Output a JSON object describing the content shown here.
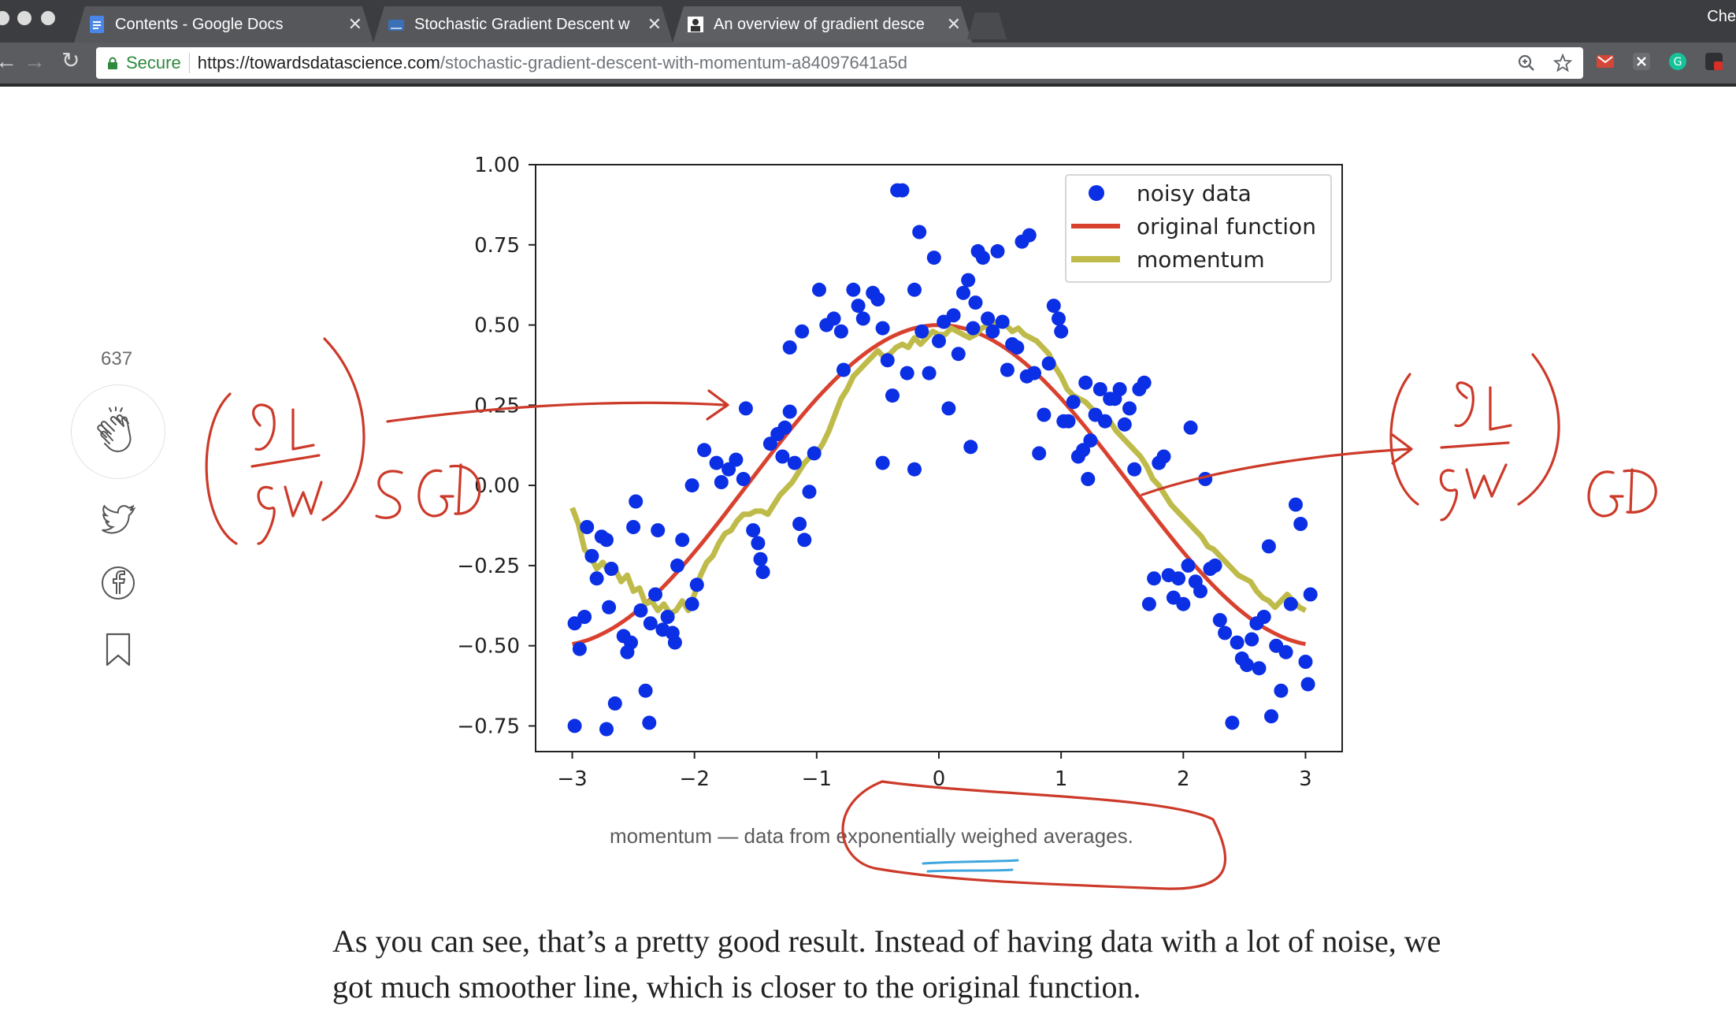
{
  "browser": {
    "tabs": [
      {
        "title": "Contents - Google Docs",
        "active": false,
        "icon": "google-docs-icon"
      },
      {
        "title": "Stochastic Gradient Descent w",
        "active": false,
        "icon": "document-icon"
      },
      {
        "title": "An overview of gradient desce",
        "active": true,
        "icon": "site-icon"
      }
    ],
    "profile_label": "Che",
    "secure_label": "Secure",
    "url_host": "https://towardsdatascience.com",
    "url_path": "/stochastic-gradient-descent-with-momentum-a84097641a5d"
  },
  "sidebar": {
    "clap_count": "637"
  },
  "chart_data": {
    "type": "scatter",
    "xlim": [
      -3.3,
      3.3
    ],
    "ylim": [
      -0.83,
      1.0
    ],
    "x_ticks": [
      -3,
      -2,
      -1,
      0,
      1,
      2,
      3
    ],
    "x_tick_labels": [
      "−3",
      "−2",
      "−1",
      "0",
      "1",
      "2",
      "3"
    ],
    "y_ticks": [
      1.0,
      0.75,
      0.5,
      0.25,
      0.0,
      -0.25,
      -0.5,
      -0.75
    ],
    "y_tick_labels": [
      "1.00",
      "0.75",
      "0.50",
      "0.25",
      "0.00",
      "−0.25",
      "−0.50",
      "−0.75"
    ],
    "legend_position": "top-right",
    "legend": [
      "noisy data",
      "original function",
      "momentum"
    ],
    "colors": {
      "noisy data": "#0b2fe5",
      "original function": "#d9412f",
      "momentum": "#bfbb4a"
    },
    "series": [
      {
        "name": "noisy data",
        "kind": "scatter",
        "points": [
          [
            -2.98,
            -0.75
          ],
          [
            -2.72,
            -0.76
          ],
          [
            -2.65,
            -0.68
          ],
          [
            -2.37,
            -0.74
          ],
          [
            -2.4,
            -0.64
          ],
          [
            -2.98,
            -0.43
          ],
          [
            -2.94,
            -0.51
          ],
          [
            -2.9,
            -0.41
          ],
          [
            -2.88,
            -0.13
          ],
          [
            -2.84,
            -0.22
          ],
          [
            -2.8,
            -0.29
          ],
          [
            -2.76,
            -0.16
          ],
          [
            -2.72,
            -0.17
          ],
          [
            -2.68,
            -0.26
          ],
          [
            -2.7,
            -0.38
          ],
          [
            -2.58,
            -0.47
          ],
          [
            -2.55,
            -0.52
          ],
          [
            -2.52,
            -0.49
          ],
          [
            -2.5,
            -0.13
          ],
          [
            -2.48,
            -0.05
          ],
          [
            -2.44,
            -0.39
          ],
          [
            -2.36,
            -0.43
          ],
          [
            -2.32,
            -0.34
          ],
          [
            -2.3,
            -0.14
          ],
          [
            -2.26,
            -0.45
          ],
          [
            -2.22,
            -0.41
          ],
          [
            -2.18,
            -0.46
          ],
          [
            -2.16,
            -0.49
          ],
          [
            -2.14,
            -0.25
          ],
          [
            -2.1,
            -0.17
          ],
          [
            -2.02,
            -0.37
          ],
          [
            -1.98,
            -0.31
          ],
          [
            -2.02,
            0.0
          ],
          [
            -1.92,
            0.11
          ],
          [
            -1.82,
            0.07
          ],
          [
            -1.78,
            0.01
          ],
          [
            -1.72,
            0.05
          ],
          [
            -1.66,
            0.08
          ],
          [
            -1.6,
            0.02
          ],
          [
            -1.58,
            0.24
          ],
          [
            -1.52,
            -0.14
          ],
          [
            -1.48,
            -0.18
          ],
          [
            -1.46,
            -0.23
          ],
          [
            -1.44,
            -0.27
          ],
          [
            -1.38,
            0.13
          ],
          [
            -1.32,
            0.16
          ],
          [
            -1.28,
            0.09
          ],
          [
            -1.26,
            0.18
          ],
          [
            -1.22,
            0.23
          ],
          [
            -1.18,
            0.07
          ],
          [
            -1.14,
            -0.12
          ],
          [
            -1.1,
            -0.17
          ],
          [
            -1.06,
            -0.02
          ],
          [
            -1.02,
            0.1
          ],
          [
            -1.22,
            0.43
          ],
          [
            -1.12,
            0.48
          ],
          [
            -0.98,
            0.61
          ],
          [
            -0.92,
            0.5
          ],
          [
            -0.86,
            0.52
          ],
          [
            -0.8,
            0.48
          ],
          [
            -0.78,
            0.36
          ],
          [
            -0.7,
            0.61
          ],
          [
            -0.66,
            0.56
          ],
          [
            -0.62,
            0.52
          ],
          [
            -0.54,
            0.6
          ],
          [
            -0.5,
            0.58
          ],
          [
            -0.46,
            0.49
          ],
          [
            -0.42,
            0.39
          ],
          [
            -0.38,
            0.28
          ],
          [
            -0.34,
            0.92
          ],
          [
            -0.3,
            0.92
          ],
          [
            -0.26,
            0.35
          ],
          [
            -0.2,
            0.61
          ],
          [
            -0.16,
            0.79
          ],
          [
            -0.14,
            0.48
          ],
          [
            -0.08,
            0.35
          ],
          [
            -0.04,
            0.71
          ],
          [
            -0.2,
            0.05
          ],
          [
            -0.46,
            0.07
          ],
          [
            0.0,
            0.45
          ],
          [
            0.04,
            0.51
          ],
          [
            0.08,
            0.24
          ],
          [
            0.12,
            0.53
          ],
          [
            0.16,
            0.41
          ],
          [
            0.2,
            0.6
          ],
          [
            0.24,
            0.64
          ],
          [
            0.26,
            0.12
          ],
          [
            0.28,
            0.49
          ],
          [
            0.3,
            0.57
          ],
          [
            0.32,
            0.73
          ],
          [
            0.36,
            0.71
          ],
          [
            0.4,
            0.52
          ],
          [
            0.44,
            0.48
          ],
          [
            0.48,
            0.73
          ],
          [
            0.52,
            0.51
          ],
          [
            0.56,
            0.36
          ],
          [
            0.6,
            0.44
          ],
          [
            0.64,
            0.43
          ],
          [
            0.68,
            0.76
          ],
          [
            0.72,
            0.34
          ],
          [
            0.74,
            0.78
          ],
          [
            0.78,
            0.35
          ],
          [
            0.82,
            0.1
          ],
          [
            0.86,
            0.22
          ],
          [
            0.9,
            0.38
          ],
          [
            0.94,
            0.56
          ],
          [
            0.98,
            0.52
          ],
          [
            1.0,
            0.48
          ],
          [
            1.02,
            0.2
          ],
          [
            1.06,
            0.2
          ],
          [
            1.1,
            0.26
          ],
          [
            1.14,
            0.09
          ],
          [
            1.18,
            0.11
          ],
          [
            1.2,
            0.32
          ],
          [
            1.22,
            0.02
          ],
          [
            1.24,
            0.14
          ],
          [
            1.28,
            0.22
          ],
          [
            1.32,
            0.3
          ],
          [
            1.36,
            0.2
          ],
          [
            1.4,
            0.27
          ],
          [
            1.44,
            0.27
          ],
          [
            1.48,
            0.3
          ],
          [
            1.52,
            0.19
          ],
          [
            1.56,
            0.24
          ],
          [
            1.6,
            0.05
          ],
          [
            1.64,
            0.3
          ],
          [
            1.68,
            0.32
          ],
          [
            1.72,
            -0.37
          ],
          [
            1.76,
            -0.29
          ],
          [
            1.8,
            0.07
          ],
          [
            1.84,
            0.09
          ],
          [
            1.88,
            -0.28
          ],
          [
            1.92,
            -0.35
          ],
          [
            1.96,
            -0.29
          ],
          [
            2.0,
            -0.37
          ],
          [
            2.04,
            -0.25
          ],
          [
            2.06,
            0.18
          ],
          [
            2.1,
            -0.3
          ],
          [
            2.14,
            -0.33
          ],
          [
            2.18,
            0.02
          ],
          [
            2.22,
            -0.26
          ],
          [
            2.26,
            -0.25
          ],
          [
            2.3,
            -0.42
          ],
          [
            2.34,
            -0.46
          ],
          [
            2.4,
            -0.74
          ],
          [
            2.44,
            -0.49
          ],
          [
            2.48,
            -0.54
          ],
          [
            2.52,
            -0.56
          ],
          [
            2.56,
            -0.48
          ],
          [
            2.6,
            -0.43
          ],
          [
            2.62,
            -0.57
          ],
          [
            2.66,
            -0.41
          ],
          [
            2.7,
            -0.19
          ],
          [
            2.72,
            -0.72
          ],
          [
            2.76,
            -0.5
          ],
          [
            2.8,
            -0.64
          ],
          [
            2.84,
            -0.52
          ],
          [
            2.88,
            -0.37
          ],
          [
            2.92,
            -0.06
          ],
          [
            2.96,
            -0.12
          ],
          [
            3.0,
            -0.55
          ],
          [
            3.02,
            -0.62
          ],
          [
            3.04,
            -0.34
          ]
        ]
      },
      {
        "name": "original function",
        "kind": "line",
        "function": "0.5*cos(x)",
        "x_range": [
          -3,
          3
        ]
      },
      {
        "name": "momentum",
        "kind": "line",
        "points": [
          [
            -3.0,
            -0.07
          ],
          [
            -2.95,
            -0.12
          ],
          [
            -2.9,
            -0.2
          ],
          [
            -2.85,
            -0.22
          ],
          [
            -2.8,
            -0.26
          ],
          [
            -2.75,
            -0.24
          ],
          [
            -2.7,
            -0.27
          ],
          [
            -2.65,
            -0.26
          ],
          [
            -2.6,
            -0.3
          ],
          [
            -2.55,
            -0.28
          ],
          [
            -2.5,
            -0.33
          ],
          [
            -2.45,
            -0.32
          ],
          [
            -2.4,
            -0.37
          ],
          [
            -2.35,
            -0.36
          ],
          [
            -2.3,
            -0.39
          ],
          [
            -2.25,
            -0.37
          ],
          [
            -2.2,
            -0.4
          ],
          [
            -2.15,
            -0.39
          ],
          [
            -2.1,
            -0.36
          ],
          [
            -2.05,
            -0.39
          ],
          [
            -2.0,
            -0.34
          ],
          [
            -1.95,
            -0.28
          ],
          [
            -1.9,
            -0.24
          ],
          [
            -1.85,
            -0.22
          ],
          [
            -1.8,
            -0.18
          ],
          [
            -1.75,
            -0.15
          ],
          [
            -1.7,
            -0.14
          ],
          [
            -1.65,
            -0.11
          ],
          [
            -1.6,
            -0.09
          ],
          [
            -1.55,
            -0.09
          ],
          [
            -1.5,
            -0.08
          ],
          [
            -1.45,
            -0.08
          ],
          [
            -1.4,
            -0.09
          ],
          [
            -1.35,
            -0.06
          ],
          [
            -1.3,
            -0.03
          ],
          [
            -1.25,
            -0.01
          ],
          [
            -1.2,
            0.01
          ],
          [
            -1.15,
            0.04
          ],
          [
            -1.1,
            0.07
          ],
          [
            -1.05,
            0.09
          ],
          [
            -1.0,
            0.1
          ],
          [
            -0.95,
            0.13
          ],
          [
            -0.9,
            0.17
          ],
          [
            -0.85,
            0.22
          ],
          [
            -0.8,
            0.27
          ],
          [
            -0.75,
            0.3
          ],
          [
            -0.7,
            0.34
          ],
          [
            -0.65,
            0.36
          ],
          [
            -0.6,
            0.38
          ],
          [
            -0.55,
            0.4
          ],
          [
            -0.5,
            0.42
          ],
          [
            -0.45,
            0.4
          ],
          [
            -0.4,
            0.41
          ],
          [
            -0.35,
            0.43
          ],
          [
            -0.3,
            0.44
          ],
          [
            -0.25,
            0.43
          ],
          [
            -0.2,
            0.46
          ],
          [
            -0.15,
            0.44
          ],
          [
            -0.1,
            0.46
          ],
          [
            -0.05,
            0.48
          ],
          [
            0.0,
            0.47
          ],
          [
            0.05,
            0.47
          ],
          [
            0.1,
            0.49
          ],
          [
            0.15,
            0.48
          ],
          [
            0.2,
            0.47
          ],
          [
            0.25,
            0.46
          ],
          [
            0.3,
            0.47
          ],
          [
            0.35,
            0.49
          ],
          [
            0.4,
            0.5
          ],
          [
            0.45,
            0.51
          ],
          [
            0.5,
            0.5
          ],
          [
            0.55,
            0.5
          ],
          [
            0.6,
            0.48
          ],
          [
            0.65,
            0.49
          ],
          [
            0.7,
            0.47
          ],
          [
            0.75,
            0.46
          ],
          [
            0.8,
            0.45
          ],
          [
            0.85,
            0.43
          ],
          [
            0.9,
            0.41
          ],
          [
            0.95,
            0.37
          ],
          [
            1.0,
            0.34
          ],
          [
            1.05,
            0.3
          ],
          [
            1.1,
            0.28
          ],
          [
            1.15,
            0.27
          ],
          [
            1.2,
            0.26
          ],
          [
            1.25,
            0.24
          ],
          [
            1.3,
            0.22
          ],
          [
            1.35,
            0.2
          ],
          [
            1.4,
            0.2
          ],
          [
            1.45,
            0.17
          ],
          [
            1.5,
            0.15
          ],
          [
            1.55,
            0.13
          ],
          [
            1.6,
            0.11
          ],
          [
            1.65,
            0.09
          ],
          [
            1.7,
            0.06
          ],
          [
            1.75,
            0.02
          ],
          [
            1.8,
            0.0
          ],
          [
            1.85,
            -0.03
          ],
          [
            1.9,
            -0.06
          ],
          [
            1.95,
            -0.08
          ],
          [
            2.0,
            -0.1
          ],
          [
            2.05,
            -0.12
          ],
          [
            2.1,
            -0.14
          ],
          [
            2.15,
            -0.16
          ],
          [
            2.2,
            -0.19
          ],
          [
            2.25,
            -0.2
          ],
          [
            2.3,
            -0.22
          ],
          [
            2.35,
            -0.24
          ],
          [
            2.4,
            -0.26
          ],
          [
            2.45,
            -0.28
          ],
          [
            2.5,
            -0.29
          ],
          [
            2.55,
            -0.3
          ],
          [
            2.6,
            -0.33
          ],
          [
            2.65,
            -0.35
          ],
          [
            2.7,
            -0.36
          ],
          [
            2.75,
            -0.38
          ],
          [
            2.8,
            -0.36
          ],
          [
            2.85,
            -0.34
          ],
          [
            2.9,
            -0.36
          ],
          [
            2.95,
            -0.38
          ],
          [
            3.0,
            -0.39
          ]
        ]
      }
    ]
  },
  "caption": "momentum — data from exponentially weighed averages.",
  "body_text": "As you can see, that’s a pretty good result. Instead of having data with a lot of noise, we got much smoother line, which is closer to the original function.",
  "annotations": {
    "left_label": "SGD",
    "right_label": "GD"
  }
}
